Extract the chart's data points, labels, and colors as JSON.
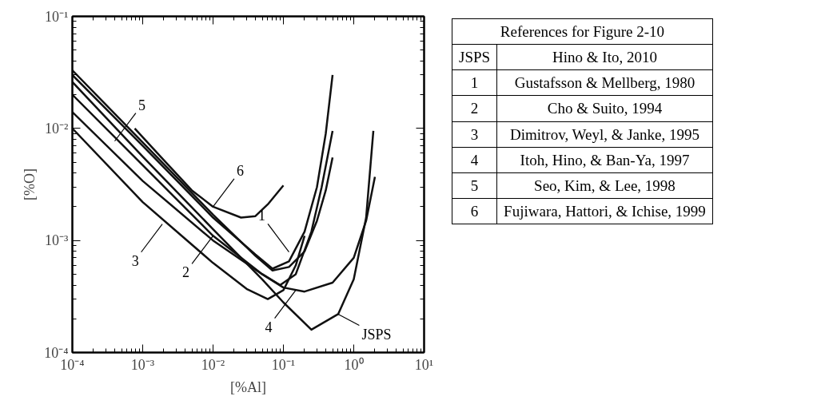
{
  "chart_data": [
    {
      "type": "line",
      "xlabel": "[%Al]",
      "ylabel": "[%O]",
      "log": "xy",
      "grid": false,
      "marker": "none",
      "line_style": "solid",
      "xlim": [
        0.0001,
        10
      ],
      "ylim": [
        0.0001,
        0.1
      ],
      "xticks": [
        {
          "value": 0.0001,
          "label": "10⁻⁴"
        },
        {
          "value": 0.001,
          "label": "10⁻³"
        },
        {
          "value": 0.01,
          "label": "10⁻²"
        },
        {
          "value": 0.1,
          "label": "10⁻¹"
        },
        {
          "value": 1,
          "label": "10⁰"
        },
        {
          "value": 10,
          "label": "10¹"
        }
      ],
      "yticks": [
        {
          "value": 0.0001,
          "label": "10⁻⁴"
        },
        {
          "value": 0.001,
          "label": "10⁻³"
        },
        {
          "value": 0.01,
          "label": "10⁻²"
        },
        {
          "value": 0.1,
          "label": "10⁻¹"
        }
      ],
      "series": [
        {
          "color": "#111111",
          "x": [
            0.0001,
            0.001,
            0.01,
            0.05,
            0.1,
            0.25,
            0.6,
            1.0,
            1.5,
            1.9
          ],
          "values": [
            0.026,
            0.0056,
            0.00126,
            0.00045,
            0.00028,
            0.00016,
            0.00022,
            0.00045,
            0.0016,
            0.0095
          ]
        },
        {
          "color": "#111111",
          "x": [
            0.0001,
            0.001,
            0.01,
            0.04,
            0.07,
            0.12,
            0.2,
            0.3,
            0.4,
            0.5
          ],
          "values": [
            0.03,
            0.007,
            0.0016,
            0.00075,
            0.00056,
            0.00065,
            0.0012,
            0.003,
            0.009,
            0.03
          ]
        },
        {
          "color": "#111111",
          "x": [
            0.0001,
            0.001,
            0.01,
            0.05,
            0.09,
            0.15,
            0.25,
            0.35,
            0.5
          ],
          "values": [
            0.02,
            0.0047,
            0.0011,
            0.0005,
            0.0004,
            0.0005,
            0.0012,
            0.003,
            0.0095
          ]
        },
        {
          "color": "#111111",
          "x": [
            0.0001,
            0.001,
            0.01,
            0.03,
            0.06,
            0.1,
            0.15,
            0.2
          ],
          "values": [
            0.01,
            0.0022,
            0.00063,
            0.00037,
            0.0003,
            0.00036,
            0.0006,
            0.0011
          ]
        },
        {
          "color": "#111111",
          "x": [
            0.0001,
            0.001,
            0.01,
            0.05,
            0.1,
            0.2,
            0.5,
            1.0,
            1.5,
            2.0
          ],
          "values": [
            0.014,
            0.0034,
            0.001,
            0.0005,
            0.00038,
            0.00035,
            0.00042,
            0.0007,
            0.0015,
            0.0037
          ]
        },
        {
          "color": "#111111",
          "x": [
            0.0001,
            0.001,
            0.01,
            0.04,
            0.07,
            0.12,
            0.2,
            0.3,
            0.4,
            0.5
          ],
          "values": [
            0.033,
            0.0075,
            0.0017,
            0.00073,
            0.00054,
            0.00058,
            0.0008,
            0.0015,
            0.0028,
            0.0055
          ]
        },
        {
          "color": "#111111",
          "x": [
            0.00077,
            0.002,
            0.005,
            0.01,
            0.025,
            0.04,
            0.06,
            0.1
          ],
          "values": [
            0.01,
            0.0052,
            0.0028,
            0.002,
            0.0016,
            0.00165,
            0.0021,
            0.0031
          ]
        }
      ],
      "annotations": [
        {
          "text": "5",
          "x": 0.0004,
          "y": 0.0077
        },
        {
          "text": "6",
          "x": 0.01,
          "y": 0.002
        },
        {
          "text": "3",
          "x": 0.0019,
          "y": 0.0014
        },
        {
          "text": "2",
          "x": 0.01,
          "y": 0.0011
        },
        {
          "text": "1",
          "x": 0.12,
          "y": 0.00079
        },
        {
          "text": "4",
          "x": 0.15,
          "y": 0.00036
        },
        {
          "text": "JSPS",
          "x": 0.6,
          "y": 0.00022
        },
        "References for Figure 2-10",
        "JSPS",
        "Hino & Ito, 2010",
        "1",
        "Gustafsson & Mellberg, 1980",
        "2",
        "Cho & Suito, 1994",
        "3",
        "Dimitrov, Weyl, & Janke, 1995",
        "4",
        "Itoh, Hino, & Ban-Ya, 1997",
        "5",
        "Seo, Kim, & Lee, 1998",
        "6",
        "Fujiwara, Hattori, & Ichise, 1999"
      ]
    }
  ]
}
